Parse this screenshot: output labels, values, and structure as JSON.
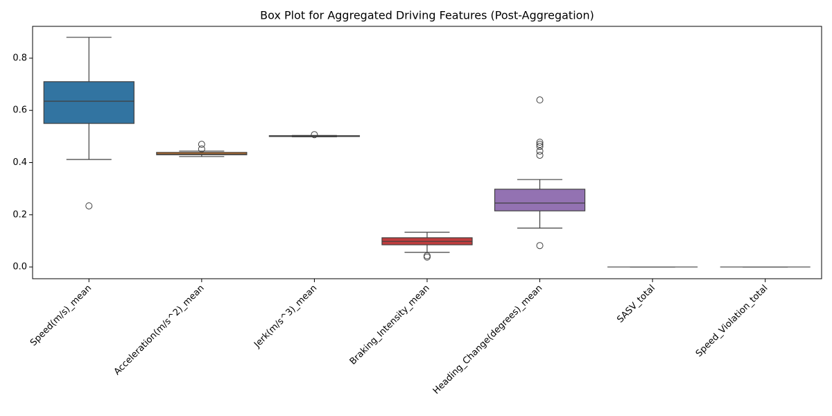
{
  "chart_data": {
    "type": "box",
    "title": "Box Plot for Aggregated Driving Features (Post-Aggregation)",
    "categories": [
      "Speed(m/s)_mean",
      "Acceleration(m/s^2)_mean",
      "Jerk(m/s^3)_mean",
      "Braking_Intensity_mean",
      "Heading_Change(degrees)_mean",
      "SASV_total",
      "Speed_Violation_total"
    ],
    "colors": [
      "#3274a1",
      "#e1812c",
      "#3a923a",
      "#c03d3e",
      "#9372b2",
      "#845b53",
      "#d684bd"
    ],
    "whisker_low": [
      0.412,
      0.423,
      0.499,
      0.056,
      0.149,
      0,
      0
    ],
    "q1": [
      0.55,
      0.43,
      0.5,
      0.085,
      0.215,
      0,
      0
    ],
    "median": [
      0.635,
      0.433,
      0.501,
      0.098,
      0.245,
      0,
      0
    ],
    "q3": [
      0.71,
      0.439,
      0.503,
      0.112,
      0.298,
      0,
      0
    ],
    "whisker_high": [
      0.88,
      0.444,
      0.504,
      0.133,
      0.335,
      0,
      0
    ],
    "outliers": [
      [
        0.234
      ],
      [
        0.47,
        0.452
      ],
      [
        0.507
      ],
      [
        0.043,
        0.038
      ],
      [
        0.64,
        0.478,
        0.47,
        0.462,
        0.444,
        0.428,
        0.082
      ],
      [],
      []
    ],
    "ylim": [
      -0.045,
      0.922
    ],
    "yticks": [
      {
        "value": 0,
        "label": "0.0"
      },
      0.2,
      0.4,
      0.6,
      0.8
    ]
  }
}
